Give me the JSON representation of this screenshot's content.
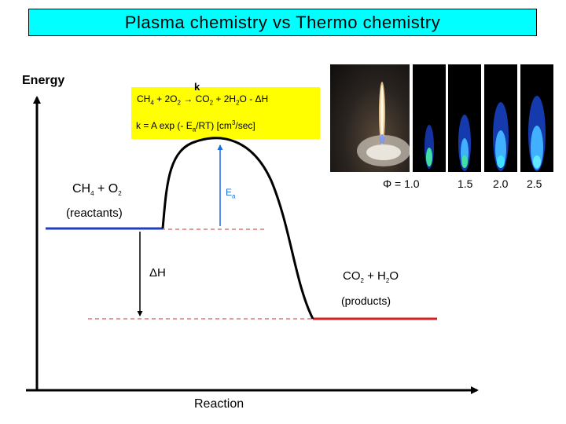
{
  "title": "Plasma chemistry  vs  Thermo chemistry",
  "axes": {
    "y_label": "Energy",
    "x_label": "Reaction"
  },
  "equation": {
    "reactant_part": "CH",
    "reactant_sub": "4",
    "plus_o2": " + 2O",
    "o2_sub": "2",
    "arrow": " → ",
    "k": "k",
    "product_part": "CO",
    "co2_sub": "2",
    "plus_h2o": " + 2H",
    "h2o_sub": "2",
    "h2o_end": "O - ΔH",
    "rate_prefix": "k = A exp (- E",
    "rate_sub": "a",
    "rate_suffix": "/RT)     [cm",
    "rate_sup": "3",
    "rate_end": "/sec]"
  },
  "diagram": {
    "reactants_formula_1": "CH",
    "reactants_sub_1": "4",
    "reactants_formula_2": " + O",
    "reactants_sub_2": "2",
    "reactants_label": "(reactants)",
    "activation_label": "E",
    "activation_sub": "a",
    "enthalpy_label": "ΔH",
    "products_formula_1": "CO",
    "products_sub_1": "2",
    "products_formula_2": " + H",
    "products_sub_2": "2",
    "products_formula_3": "O",
    "products_label": "(products)"
  },
  "flames": {
    "phi_prefix": "Φ = ",
    "phi_values": [
      "1.0",
      "1.5",
      "2.0",
      "2.5"
    ]
  },
  "colors": {
    "title_bg": "#00ffff",
    "equation_bg": "#ffff00",
    "reactant_line": "#1f3fbf",
    "product_line": "#d42020",
    "guide_line": "#c83030",
    "ea_arrow": "#1a6bdb"
  }
}
